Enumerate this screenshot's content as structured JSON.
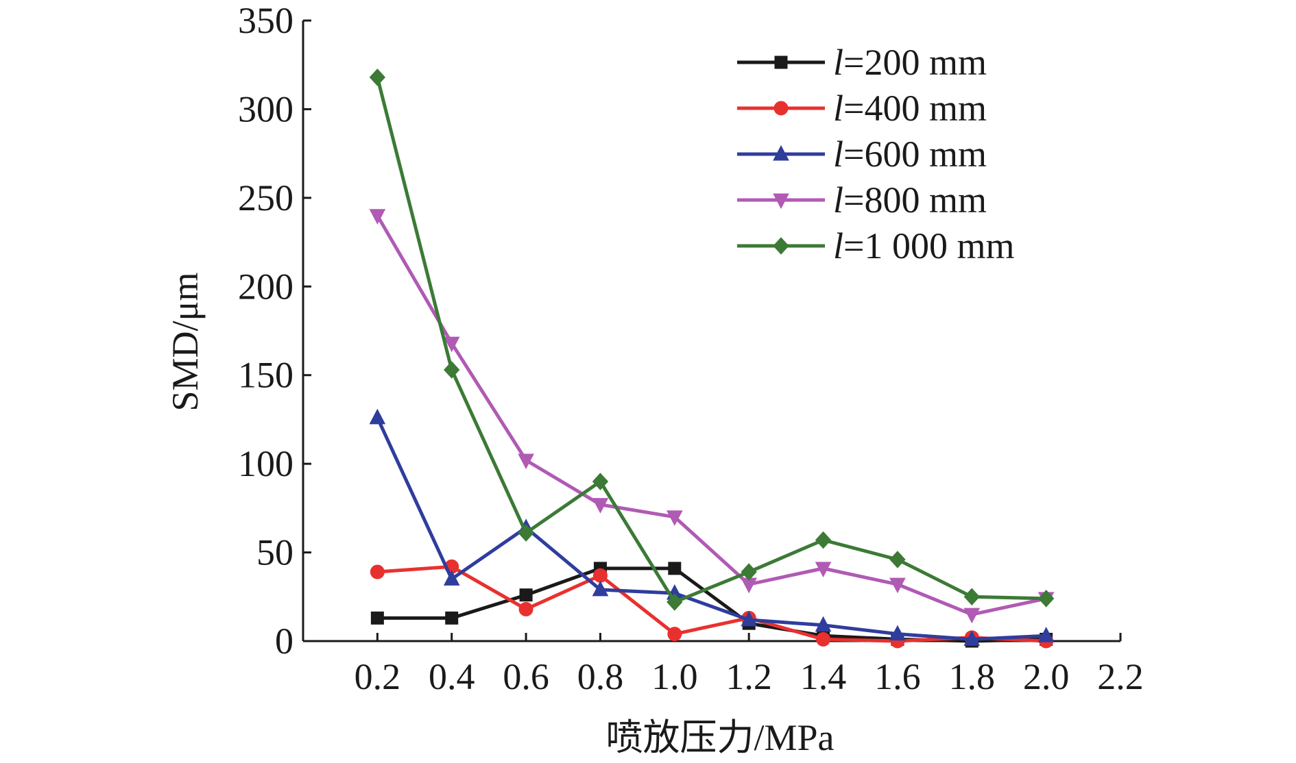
{
  "chart_data": {
    "type": "line",
    "title": "",
    "xlabel": "喷放压力/MPa",
    "ylabel": "SMD/μm",
    "xlim": [
      0,
      2.2
    ],
    "ylim": [
      0,
      350
    ],
    "x_ticks": [
      "0.2",
      "0.4",
      "0.6",
      "0.8",
      "1.0",
      "1.2",
      "1.4",
      "1.6",
      "1.8",
      "2.0",
      "2.2"
    ],
    "y_ticks": [
      "0",
      "50",
      "100",
      "150",
      "200",
      "250",
      "300",
      "350"
    ],
    "x": [
      0.2,
      0.4,
      0.6,
      0.8,
      1.0,
      1.2,
      1.4,
      1.6,
      1.8,
      2.0
    ],
    "legend_position": "top-right",
    "series": [
      {
        "name_var": "l",
        "name_rest": "=200 mm",
        "color": "#1a1a1a",
        "marker": "square",
        "values": [
          13,
          13,
          26,
          41,
          41,
          10,
          3,
          1,
          0,
          1
        ]
      },
      {
        "name_var": "l",
        "name_rest": "=400 mm",
        "color": "#e8312f",
        "marker": "circle",
        "values": [
          39,
          42,
          18,
          37,
          4,
          13,
          1,
          0,
          2,
          0
        ]
      },
      {
        "name_var": "l",
        "name_rest": "=600 mm",
        "color": "#2f3d9c",
        "marker": "triangle-up",
        "values": [
          126,
          35,
          64,
          29,
          27,
          12,
          9,
          4,
          1,
          3
        ]
      },
      {
        "name_var": "l",
        "name_rest": "=800 mm",
        "color": "#b05ab4",
        "marker": "triangle-down",
        "values": [
          240,
          168,
          102,
          77,
          70,
          32,
          41,
          32,
          15,
          24
        ]
      },
      {
        "name_var": "l",
        "name_rest": "=1 000 mm",
        "color": "#3c7a36",
        "marker": "diamond",
        "values": [
          318,
          153,
          61,
          90,
          22,
          39,
          57,
          46,
          25,
          24
        ]
      }
    ]
  }
}
